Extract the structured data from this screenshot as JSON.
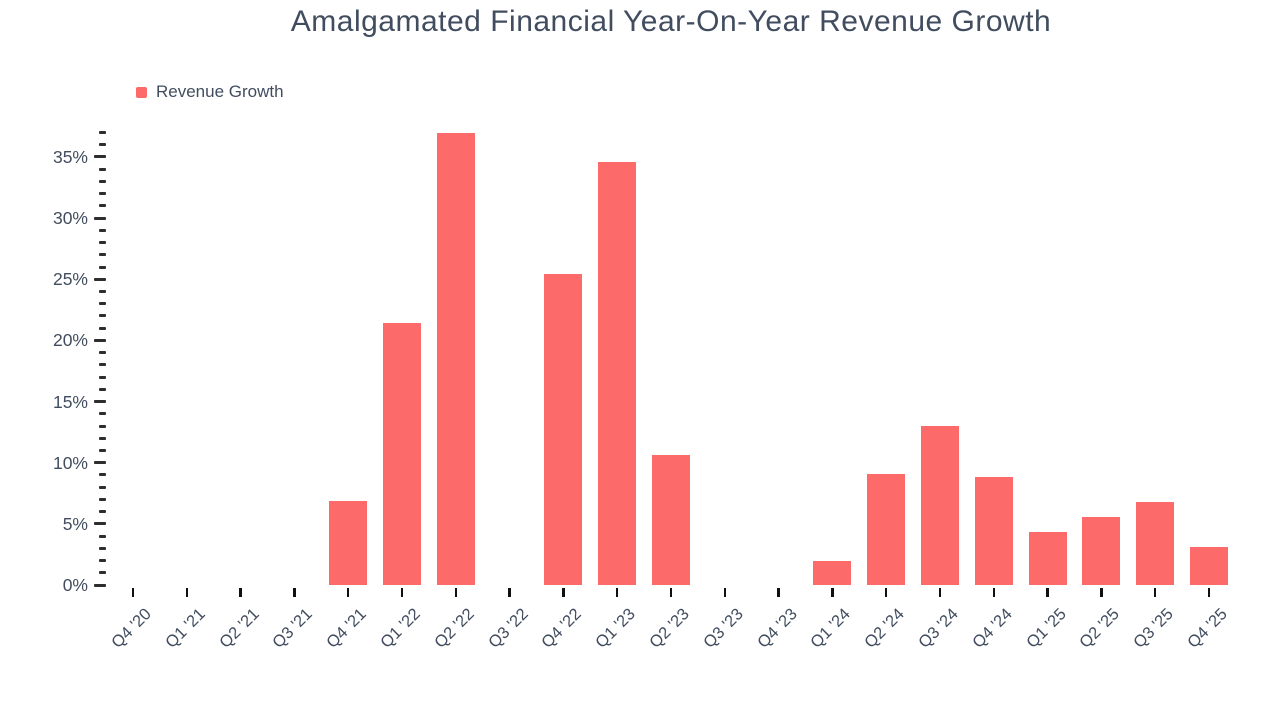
{
  "title": "Amalgamated Financial Year-On-Year Revenue Growth",
  "legend": {
    "label": "Revenue Growth",
    "swatch_color": "#fc6b6a"
  },
  "colors": {
    "bar": "#fc6b6a",
    "text": "#414d5f",
    "x_tick": "#101010",
    "y_tick": "#2e2e2e",
    "background": "#ffffff"
  },
  "chart_data": {
    "type": "bar",
    "title": "Amalgamated Financial Year-On-Year Revenue Growth",
    "series_name": "Revenue Growth",
    "categories": [
      "Q4 '20",
      "Q1 '21",
      "Q2 '21",
      "Q3 '21",
      "Q4 '21",
      "Q1 '22",
      "Q2 '22",
      "Q3 '22",
      "Q4 '22",
      "Q1 '23",
      "Q2 '23",
      "Q3 '23",
      "Q4 '23",
      "Q1 '24",
      "Q2 '24",
      "Q3 '24",
      "Q4 '24",
      "Q1 '25",
      "Q2 '25",
      "Q3 '25",
      "Q4 '25"
    ],
    "values": [
      null,
      null,
      null,
      null,
      6.9,
      21.4,
      37.0,
      null,
      25.4,
      34.6,
      10.6,
      null,
      null,
      2.0,
      9.1,
      13.0,
      8.8,
      4.3,
      5.6,
      6.8,
      3.1
    ],
    "value_unit": "%",
    "xlabel": "",
    "ylabel": "",
    "ylim": [
      0,
      37
    ],
    "ytick_major_step": 5,
    "ytick_minor_step": 1,
    "ytick_labels": [
      "0%",
      "5%",
      "10%",
      "15%",
      "20%",
      "25%",
      "30%",
      "35%"
    ],
    "grid": false,
    "legend_position": "top-left",
    "bar_color": "#fc6b6a"
  }
}
